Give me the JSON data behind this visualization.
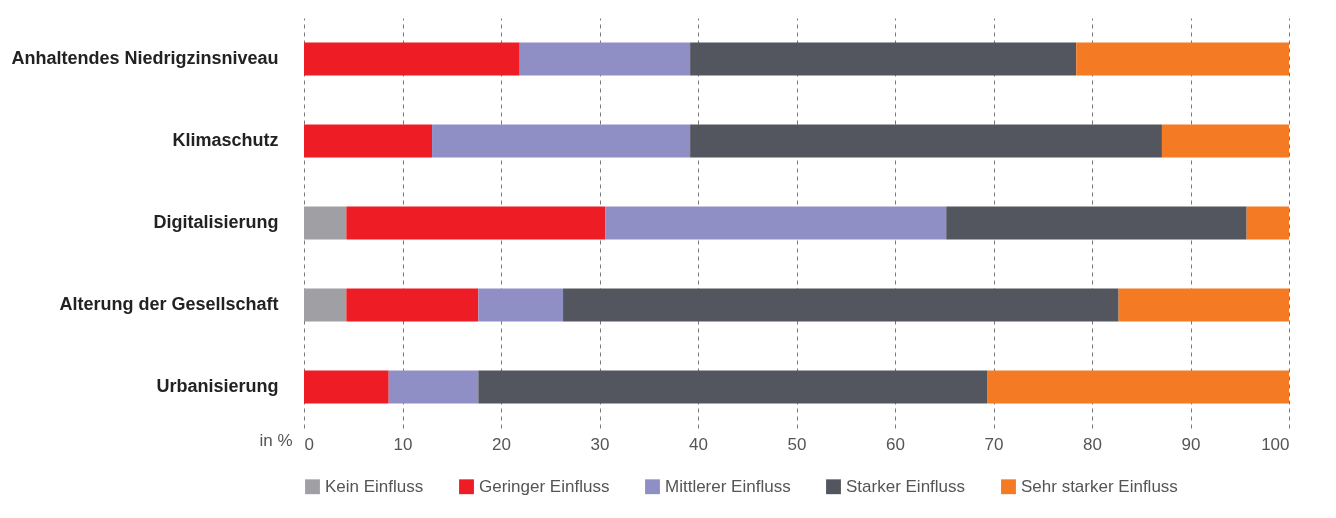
{
  "chart_data": {
    "type": "bar",
    "orientation": "horizontal",
    "stacked": true,
    "xlabel": "in %",
    "categories": [
      "Anhaltendes Niedrigzinsniveau",
      "Klimaschutz",
      "Digitalisierung",
      "Alterung der Gesellschaft",
      "Urbanisierung"
    ],
    "series": [
      {
        "name": "Kein Einfluss",
        "color": "#a09fa4",
        "values": [
          0,
          0,
          4.3,
          4.3,
          0
        ]
      },
      {
        "name": "Geringer Einfluss",
        "color": "#ee1c25",
        "values": [
          21.9,
          13,
          26.3,
          13.4,
          8.6
        ]
      },
      {
        "name": "Mittlerer Einfluss",
        "color": "#8f8fc6",
        "values": [
          17.3,
          26.2,
          34.6,
          8.6,
          9.1
        ]
      },
      {
        "name": "Starker Einfluss",
        "color": "#54565f",
        "values": [
          39.2,
          47.9,
          30.5,
          56.4,
          51.7
        ]
      },
      {
        "name": "Sehr starker Einfluss",
        "color": "#f47a24",
        "values": [
          21.6,
          12.9,
          4.3,
          17.3,
          30.6
        ]
      }
    ],
    "xlim": [
      0,
      100
    ],
    "xticks": [
      0,
      10,
      20,
      30,
      40,
      50,
      60,
      70,
      80,
      90,
      100
    ],
    "grid": "x",
    "legend": "bottom"
  }
}
